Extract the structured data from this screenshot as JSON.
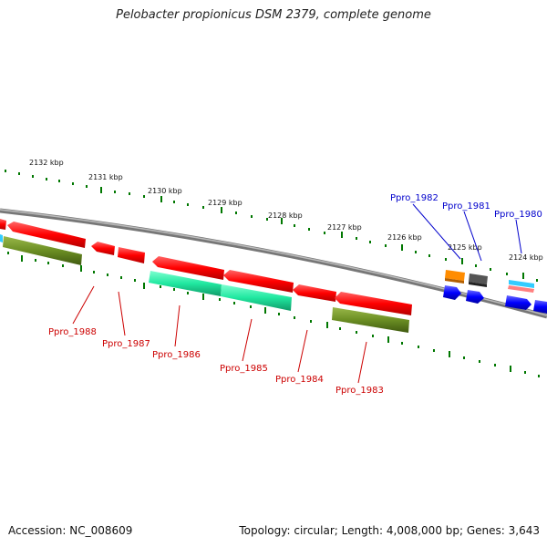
{
  "title": "Pelobacter propionicus DSM 2379, complete genome",
  "accession": "Accession: NC_008609",
  "summary": "Topology: circular; Length: 4,008,000 bp; Genes: 3,643",
  "kbp_labels": [
    "2132 kbp",
    "2131 kbp",
    "2130 kbp",
    "2129 kbp",
    "2128 kbp",
    "2127 kbp",
    "2126 kbp",
    "2125 kbp",
    "2124 kbp"
  ],
  "reverse_genes": [
    "Ppro_1988",
    "Ppro_1987",
    "Ppro_1986",
    "Ppro_1985",
    "Ppro_1984",
    "Ppro_1983"
  ],
  "forward_genes": [
    "Ppro_1982",
    "Ppro_1981",
    "Ppro_1980"
  ],
  "colors": {
    "cds": "#ff0000",
    "rrna_green": "#20e8a0",
    "olive": "#6b8e23",
    "blue": "#0000ff",
    "orange": "#ff8c00",
    "gray": "#666666",
    "pink": "#ff8080",
    "cyan": "#33ccff",
    "tick": "#007700",
    "backbone": "#888888"
  }
}
